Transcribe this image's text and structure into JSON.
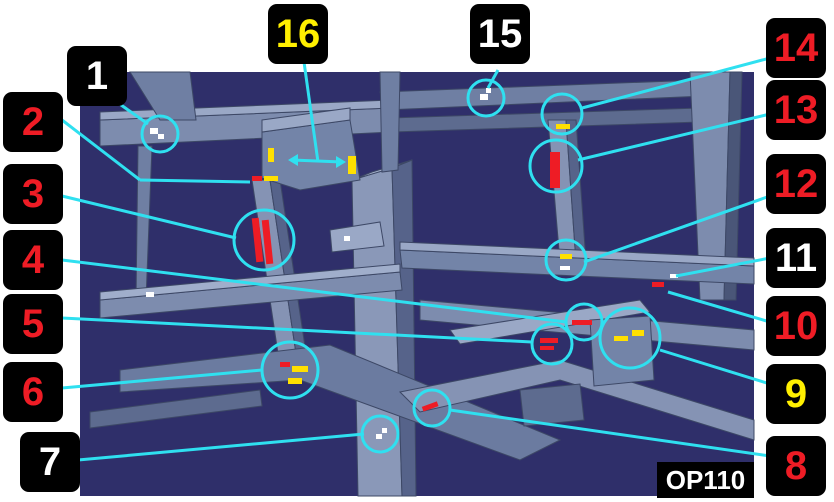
{
  "view": {
    "background_color": "#2f2f6a",
    "frame_color": "#6f7fa3",
    "frame_highlight": "#9aa8c6",
    "frame_shadow": "#4a5678",
    "leader_color": "#2fe0f0",
    "weld_red": "#ee1c25",
    "weld_yellow": "#ffe000",
    "weld_white": "#ffffff"
  },
  "operation": "OP110",
  "callouts": [
    {
      "number": "1",
      "color": "white"
    },
    {
      "number": "2",
      "color": "red"
    },
    {
      "number": "3",
      "color": "red"
    },
    {
      "number": "4",
      "color": "red"
    },
    {
      "number": "5",
      "color": "red"
    },
    {
      "number": "6",
      "color": "red"
    },
    {
      "number": "7",
      "color": "white"
    },
    {
      "number": "8",
      "color": "red"
    },
    {
      "number": "9",
      "color": "yellow"
    },
    {
      "number": "10",
      "color": "red"
    },
    {
      "number": "11",
      "color": "white"
    },
    {
      "number": "12",
      "color": "red"
    },
    {
      "number": "13",
      "color": "red"
    },
    {
      "number": "14",
      "color": "red"
    },
    {
      "number": "15",
      "color": "white"
    },
    {
      "number": "16",
      "color": "yellow"
    }
  ]
}
